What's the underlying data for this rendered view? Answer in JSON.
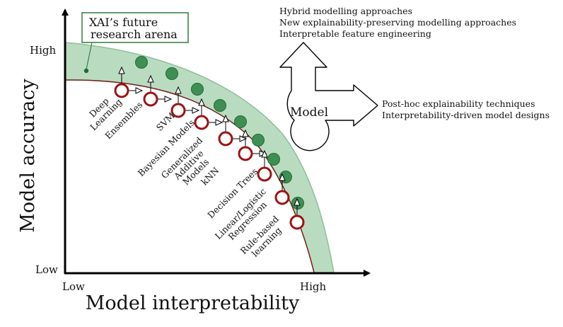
{
  "axes": {
    "y_label": "Model accuracy",
    "x_label": "Model interpretability",
    "y_high": "High",
    "y_low": "Low",
    "x_low": "Low",
    "x_high": "High"
  },
  "callout": {
    "line1": "XAI’s future",
    "line2": "research arena"
  },
  "models": [
    {
      "lines": [
        "Deep",
        "Learning"
      ]
    },
    {
      "lines": [
        "Ensembles"
      ]
    },
    {
      "lines": [
        "SVM"
      ]
    },
    {
      "lines": [
        "Bayesian Models"
      ]
    },
    {
      "lines": [
        "Generalized",
        "Additive",
        "Models"
      ]
    },
    {
      "lines": [
        "kNN"
      ]
    },
    {
      "lines": [
        "Decision Trees"
      ]
    },
    {
      "lines": [
        "Linear/Logistic",
        "Regression"
      ]
    },
    {
      "lines": [
        "Rule-based",
        "learning"
      ]
    }
  ],
  "model_box": {
    "label": "Model",
    "up_items": [
      "Hybrid modelling approaches",
      "New explainability-preserving modelling approaches",
      "Interpretable feature engineering"
    ],
    "right_items": [
      "Post-hoc explainability techniques",
      "Interpretability-driven model designs"
    ]
  },
  "colors": {
    "band_fill": "#b9dcc0",
    "band_edge": "#8fbf98",
    "curve": "#7a1f1f",
    "model_ring": "#9b1414",
    "future_dot": "#3f8f55",
    "future_dot_edge": "#1f6b34"
  }
}
